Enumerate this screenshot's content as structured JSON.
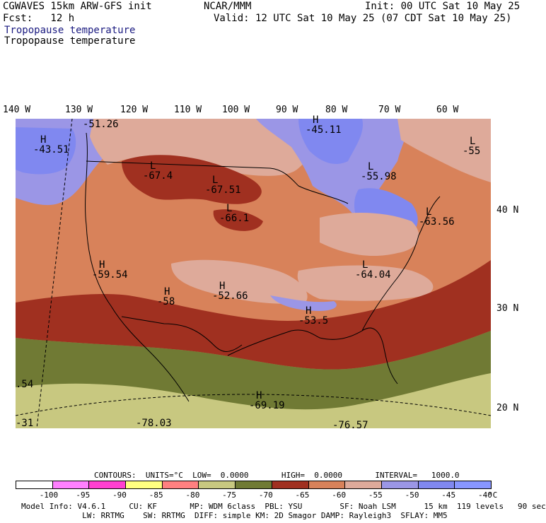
{
  "header": {
    "model": "CGWAVES 15km ARW-GFS init",
    "org": "NCAR/MMM",
    "init": "Init: 00 UTC Sat 10 May 25",
    "fcst": "Fcst:   12 h",
    "valid": "Valid: 12 UTC Sat 10 May 25 (07 CDT Sat 10 May 25)",
    "field_colored": "Tropopause temperature",
    "field_black": "Tropopause temperature"
  },
  "map": {
    "lon_labels": [
      "140 W",
      "130 W",
      "120 W",
      "110 W",
      "100 W",
      "90 W",
      "80 W",
      "70 W",
      "60 W"
    ],
    "lat_labels": [
      "40 N",
      "30 N",
      "20 N"
    ],
    "annotations": [
      {
        "letter": "H",
        "value": "-43.51"
      },
      {
        "letter": "",
        "value": "-51.26"
      },
      {
        "letter": "H",
        "value": "-45.11"
      },
      {
        "letter": "L",
        "value": "-55.98"
      },
      {
        "letter": "L",
        "value": "-55"
      },
      {
        "letter": "L",
        "value": "-67.4"
      },
      {
        "letter": "L",
        "value": "-67.51"
      },
      {
        "letter": "L",
        "value": "-66.1"
      },
      {
        "letter": "L",
        "value": "-63.56"
      },
      {
        "letter": "H",
        "value": "-59.54"
      },
      {
        "letter": "H",
        "value": "-58"
      },
      {
        "letter": "H",
        "value": "-52.66"
      },
      {
        "letter": "L",
        "value": "-64.04"
      },
      {
        "letter": "H",
        "value": "-53.5"
      },
      {
        "letter": "",
        "value": ".54"
      },
      {
        "letter": "H",
        "value": "-69.19"
      },
      {
        "letter": "",
        "value": "-78.03"
      },
      {
        "letter": "",
        "value": "-31"
      },
      {
        "letter": "",
        "value": "-76.57"
      }
    ]
  },
  "contours": {
    "text": "CONTOURS:  UNITS=°C  LOW=  0.0000       HIGH=  0.0000       INTERVAL=   1000.0"
  },
  "colorbar": {
    "colors": [
      "#ffffff",
      "#ff80ff",
      "#ff40d0",
      "#ffff80",
      "#ff8080",
      "#c8c880",
      "#707a34",
      "#a03020",
      "#d8825a",
      "#deaa9a",
      "#9b96e6",
      "#8088f0",
      "#8896ff"
    ],
    "labels": [
      "-100",
      "-95",
      "-90",
      "-85",
      "-80",
      "-75",
      "-70",
      "-65",
      "-60",
      "-55",
      "-50",
      "-45",
      "-40"
    ],
    "unit": "°C"
  },
  "footer": {
    "line1": "Model Info: V4.6.1     CU: KF       MP: WDM 6class  PBL: YSU        SF: Noah LSM      15 km  119 levels   90 sec",
    "line2": "             LW: RRTMG    SW: RRTMG  DIFF: simple KM: 2D Smagor DAMP: Rayleigh3  SFLAY: MM5"
  }
}
